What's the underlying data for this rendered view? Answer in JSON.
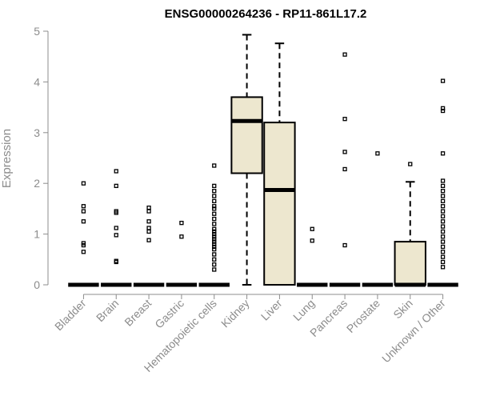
{
  "chart_data": {
    "type": "box",
    "title": "ENSG00000264236 - RP11-861L17.2",
    "xlabel": "",
    "ylabel": "Expression",
    "ylim": [
      0,
      5
    ],
    "yticks": [
      0,
      1,
      2,
      3,
      4,
      5
    ],
    "grid": false,
    "colors": {
      "box_fill": "#ede7cf",
      "stroke": "#000000",
      "axis": "#8c8c8c"
    },
    "categories": [
      {
        "name": "Bladder",
        "min": 0,
        "q1": 0,
        "median": 0,
        "q3": 0,
        "max": 0,
        "outliers": [
          0.65,
          0.78,
          0.82,
          1.25,
          1.45,
          1.55,
          2.0
        ]
      },
      {
        "name": "Brain",
        "min": 0,
        "q1": 0,
        "median": 0,
        "q3": 0,
        "max": 0,
        "outliers": [
          0.45,
          0.47,
          0.98,
          1.12,
          1.42,
          1.45,
          1.95,
          2.24
        ]
      },
      {
        "name": "Breast",
        "min": 0,
        "q1": 0,
        "median": 0,
        "q3": 0,
        "max": 0,
        "outliers": [
          0.88,
          1.05,
          1.12,
          1.25,
          1.45,
          1.52
        ]
      },
      {
        "name": "Gastric",
        "min": 0,
        "q1": 0,
        "median": 0,
        "q3": 0,
        "max": 0,
        "outliers": [
          0.95,
          1.22
        ]
      },
      {
        "name": "Hematopoietic cells",
        "min": 0,
        "q1": 0,
        "median": 0,
        "q3": 0,
        "max": 0,
        "outliers": [
          0.3,
          0.4,
          0.5,
          0.6,
          0.7,
          0.75,
          0.8,
          0.85,
          0.9,
          0.95,
          1.0,
          1.05,
          1.1,
          1.2,
          1.3,
          1.4,
          1.5,
          1.55,
          1.65,
          1.75,
          1.85,
          1.95,
          2.35
        ]
      },
      {
        "name": "Kidney",
        "min": 0,
        "q1": 2.2,
        "median": 3.23,
        "q3": 3.7,
        "max": 4.93,
        "outliers": []
      },
      {
        "name": "Liver",
        "min": 0,
        "q1": 0,
        "median": 1.87,
        "q3": 3.2,
        "max": 4.76,
        "outliers": []
      },
      {
        "name": "Lung",
        "min": 0,
        "q1": 0,
        "median": 0,
        "q3": 0,
        "max": 0,
        "outliers": [
          0.87,
          1.1
        ]
      },
      {
        "name": "Pancreas",
        "min": 0,
        "q1": 0,
        "median": 0,
        "q3": 0,
        "max": 0,
        "outliers": [
          0.78,
          2.28,
          2.62,
          3.27,
          4.54
        ]
      },
      {
        "name": "Prostate",
        "min": 0,
        "q1": 0,
        "median": 0,
        "q3": 0,
        "max": 0,
        "outliers": [
          2.59
        ]
      },
      {
        "name": "Skin",
        "min": 0,
        "q1": 0,
        "median": 0,
        "q3": 0.85,
        "max": 2.03,
        "outliers": [
          2.38
        ]
      },
      {
        "name": "Unknown / Other",
        "min": 0,
        "q1": 0,
        "median": 0,
        "q3": 0,
        "max": 0,
        "outliers": [
          0.35,
          0.45,
          0.55,
          0.65,
          0.75,
          0.85,
          0.95,
          1.05,
          1.15,
          1.25,
          1.35,
          1.45,
          1.55,
          1.65,
          1.75,
          1.85,
          1.95,
          2.05,
          2.59,
          3.43,
          3.48,
          4.02
        ]
      }
    ]
  }
}
